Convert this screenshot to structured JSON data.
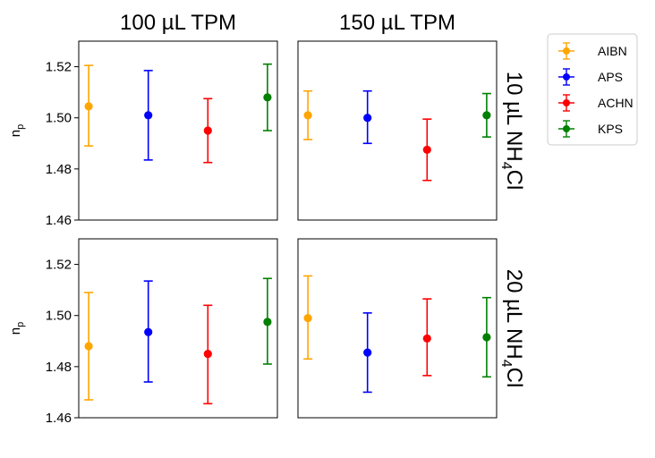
{
  "chart_data": {
    "type": "scatter",
    "subtype": "errorbar",
    "column_titles": [
      "100 µL TPM",
      "150 µL TPM"
    ],
    "row_titles": [
      {
        "main": "10 µL NH",
        "sub": "4",
        "tail": "Cl"
      },
      {
        "main": "20 µL NH",
        "sub": "4",
        "tail": "Cl"
      }
    ],
    "ylabel_main": "n",
    "ylabel_sub": "p",
    "ylim": [
      1.46,
      1.53
    ],
    "yticks": [
      "1.46",
      "1.48",
      "1.50",
      "1.52"
    ],
    "grid": false,
    "legend_position": "top-right outside",
    "series": [
      {
        "name": "AIBN",
        "color": "#FFA500"
      },
      {
        "name": "APS",
        "color": "#0000FF"
      },
      {
        "name": "ACHN",
        "color": "#FF0000"
      },
      {
        "name": "KPS",
        "color": "#008000"
      }
    ],
    "panels": [
      {
        "row": 0,
        "col": 0,
        "points": [
          {
            "series": "AIBN",
            "y": 1.5045,
            "ylow": 1.489,
            "yhigh": 1.5205
          },
          {
            "series": "APS",
            "y": 1.501,
            "ylow": 1.4835,
            "yhigh": 1.5185
          },
          {
            "series": "ACHN",
            "y": 1.495,
            "ylow": 1.4825,
            "yhigh": 1.5075
          },
          {
            "series": "KPS",
            "y": 1.508,
            "ylow": 1.495,
            "yhigh": 1.521
          }
        ]
      },
      {
        "row": 0,
        "col": 1,
        "points": [
          {
            "series": "AIBN",
            "y": 1.501,
            "ylow": 1.4915,
            "yhigh": 1.5105
          },
          {
            "series": "APS",
            "y": 1.5,
            "ylow": 1.49,
            "yhigh": 1.5105
          },
          {
            "series": "ACHN",
            "y": 1.4875,
            "ylow": 1.4755,
            "yhigh": 1.4995
          },
          {
            "series": "KPS",
            "y": 1.501,
            "ylow": 1.4925,
            "yhigh": 1.5095
          }
        ]
      },
      {
        "row": 1,
        "col": 0,
        "points": [
          {
            "series": "AIBN",
            "y": 1.488,
            "ylow": 1.467,
            "yhigh": 1.509
          },
          {
            "series": "APS",
            "y": 1.4935,
            "ylow": 1.474,
            "yhigh": 1.5135
          },
          {
            "series": "ACHN",
            "y": 1.485,
            "ylow": 1.4655,
            "yhigh": 1.504
          },
          {
            "series": "KPS",
            "y": 1.4975,
            "ylow": 1.481,
            "yhigh": 1.5145
          }
        ]
      },
      {
        "row": 1,
        "col": 1,
        "points": [
          {
            "series": "AIBN",
            "y": 1.499,
            "ylow": 1.483,
            "yhigh": 1.5155
          },
          {
            "series": "APS",
            "y": 1.4855,
            "ylow": 1.47,
            "yhigh": 1.501
          },
          {
            "series": "ACHN",
            "y": 1.491,
            "ylow": 1.4765,
            "yhigh": 1.5065
          },
          {
            "series": "KPS",
            "y": 1.4915,
            "ylow": 1.476,
            "yhigh": 1.507
          }
        ]
      }
    ]
  }
}
